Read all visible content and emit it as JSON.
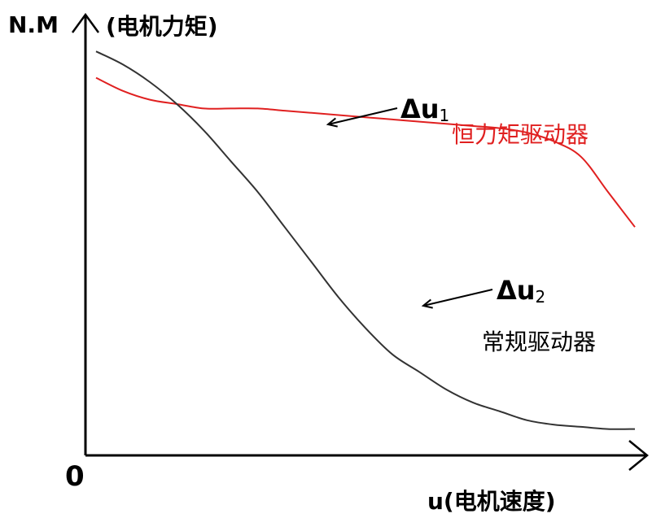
{
  "chart_data": {
    "type": "line",
    "ylabel_prefix": "N.M",
    "ylabel_cn": "(电机力矩)",
    "xlabel": "u(电机速度)",
    "origin_label": "0",
    "series": [
      {
        "name": "恒力矩驱动器",
        "color": "#e02020",
        "x": [
          0,
          0.05,
          0.1,
          0.15,
          0.2,
          0.25,
          0.3,
          0.35,
          0.4,
          0.45,
          0.5,
          0.55,
          0.6,
          0.65,
          0.7,
          0.75,
          0.8,
          0.85,
          0.9,
          0.95,
          1.0
        ],
        "y": [
          0.86,
          0.83,
          0.81,
          0.8,
          0.79,
          0.79,
          0.79,
          0.785,
          0.78,
          0.775,
          0.77,
          0.765,
          0.76,
          0.755,
          0.75,
          0.745,
          0.735,
          0.715,
          0.68,
          0.6,
          0.52
        ]
      },
      {
        "name": "常规驱动器",
        "color": "#333333",
        "x": [
          0,
          0.05,
          0.1,
          0.15,
          0.2,
          0.25,
          0.3,
          0.35,
          0.4,
          0.45,
          0.5,
          0.55,
          0.6,
          0.65,
          0.7,
          0.75,
          0.8,
          0.85,
          0.9,
          0.95,
          1.0
        ],
        "y": [
          0.92,
          0.89,
          0.85,
          0.8,
          0.74,
          0.67,
          0.6,
          0.52,
          0.44,
          0.36,
          0.29,
          0.23,
          0.19,
          0.15,
          0.12,
          0.1,
          0.08,
          0.07,
          0.065,
          0.06,
          0.06
        ]
      }
    ],
    "annotations": [
      {
        "text": "Δu",
        "sub": "1",
        "series": 0,
        "at_x": 0.18
      },
      {
        "text": "Δu",
        "sub": "2",
        "series": 1,
        "at_x": 0.41
      }
    ],
    "xlim": [
      0,
      1
    ],
    "ylim": [
      0,
      1
    ],
    "grid": false
  }
}
